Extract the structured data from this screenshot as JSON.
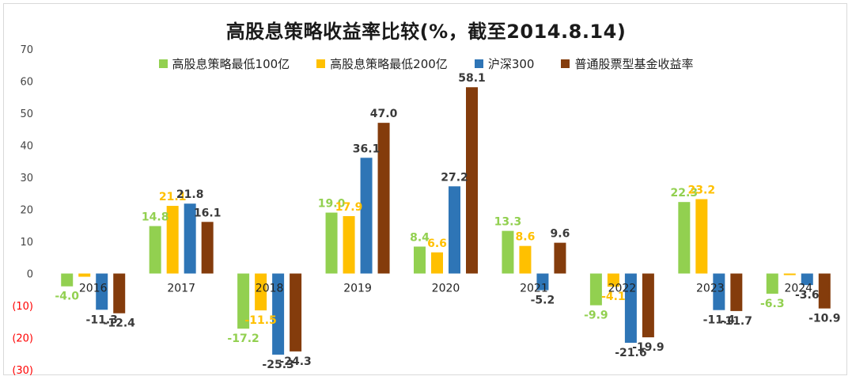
{
  "chart_data": {
    "type": "bar",
    "title": "高股息策略收益率比较(%，截至2014.8.14)",
    "categories": [
      "2016",
      "2017",
      "2018",
      "2019",
      "2020",
      "2021",
      "2022",
      "2023",
      "2024"
    ],
    "series": [
      {
        "name": "高股息策略最低100亿",
        "color": "#92d050",
        "label_color": "#92d050",
        "values": [
          -4.0,
          14.8,
          -17.2,
          19.0,
          8.4,
          13.3,
          -9.9,
          22.3,
          -6.3
        ]
      },
      {
        "name": "高股息策略最低200亿",
        "color": "#ffc000",
        "label_color": "#ffc000",
        "values": [
          -1.0,
          21.1,
          -11.5,
          17.9,
          6.6,
          8.6,
          -4.1,
          23.2,
          -0.5
        ]
      },
      {
        "name": "沪深300",
        "color": "#2e75b6",
        "label_color": "#3a3a3a",
        "values": [
          -11.3,
          21.8,
          -25.3,
          36.1,
          27.2,
          -5.2,
          -21.6,
          -11.4,
          -3.6
        ]
      },
      {
        "name": "普通股票型基金收益率",
        "color": "#843c0c",
        "label_color": "#3a3a3a",
        "values": [
          -12.4,
          16.1,
          -24.3,
          47.0,
          58.1,
          9.6,
          -19.9,
          -11.7,
          -10.9
        ]
      }
    ],
    "data_labels": [
      [
        "-4.0",
        "14.8",
        "-17.2",
        "19.0",
        "8.4",
        "13.3",
        "-9.9",
        "22.3",
        "-6.3"
      ],
      [
        "",
        "21.1",
        "-11.5",
        "17.9",
        "6.6",
        "8.6",
        "-4.1",
        "23.2",
        ""
      ],
      [
        "-11.3",
        "21.8",
        "-25.3",
        "36.1",
        "27.2",
        "-5.2",
        "-21.6",
        "-11.4",
        "-3.6"
      ],
      [
        "-12.4",
        "16.1",
        "-24.3",
        "47.0",
        "58.1",
        "9.6",
        "-19.9",
        "-11.7",
        "-10.9"
      ]
    ],
    "ylim": [
      -30,
      70
    ],
    "yticks": [
      70,
      60,
      50,
      40,
      30,
      20,
      10,
      0,
      -10,
      -20,
      -30
    ],
    "ytick_labels": [
      "70",
      "60",
      "50",
      "40",
      "30",
      "20",
      "10",
      "0",
      "(10)",
      "(20)",
      "(30)"
    ],
    "negative_tick_color": "#ff0000",
    "xlabel": "",
    "ylabel": "",
    "grid": false,
    "legend_position": "top-center"
  }
}
